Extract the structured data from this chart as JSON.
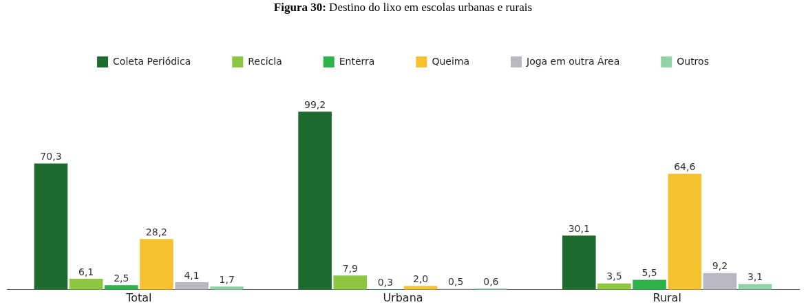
{
  "chart_data": {
    "type": "bar",
    "title": "Figura 30: Destino do lixo em escolas urbanas e rurais",
    "categories": [
      "Total",
      "Urbana",
      "Rural"
    ],
    "series": [
      {
        "name": "Coleta Periódica",
        "color": "#1e6b2e",
        "values": [
          70.3,
          99.2,
          30.1
        ],
        "value_labels": [
          "70,3",
          "99,2",
          "30,1"
        ]
      },
      {
        "name": "Recicla",
        "color": "#8dc63f",
        "values": [
          6.1,
          7.9,
          3.5
        ],
        "value_labels": [
          "6,1",
          "7,9",
          "3,5"
        ]
      },
      {
        "name": "Enterra",
        "color": "#2db34a",
        "values": [
          2.5,
          0.3,
          5.5
        ],
        "value_labels": [
          "2,5",
          "0,3",
          "5,5"
        ]
      },
      {
        "name": "Queima",
        "color": "#f6c12e",
        "values": [
          28.2,
          2.0,
          64.6
        ],
        "value_labels": [
          "28,2",
          "2,0",
          "64,6"
        ]
      },
      {
        "name": "Joga em outra Área",
        "color": "#b8b8c0",
        "values": [
          4.1,
          0.5,
          9.2
        ],
        "value_labels": [
          "4,1",
          "0,5",
          "9,2"
        ]
      },
      {
        "name": "Outros",
        "color": "#8fd3a6",
        "values": [
          1.7,
          0.6,
          3.1
        ],
        "value_labels": [
          "1,7",
          "0,6",
          "3,1"
        ]
      }
    ],
    "legend": "top",
    "grid": false,
    "tick_labels": "x"
  }
}
